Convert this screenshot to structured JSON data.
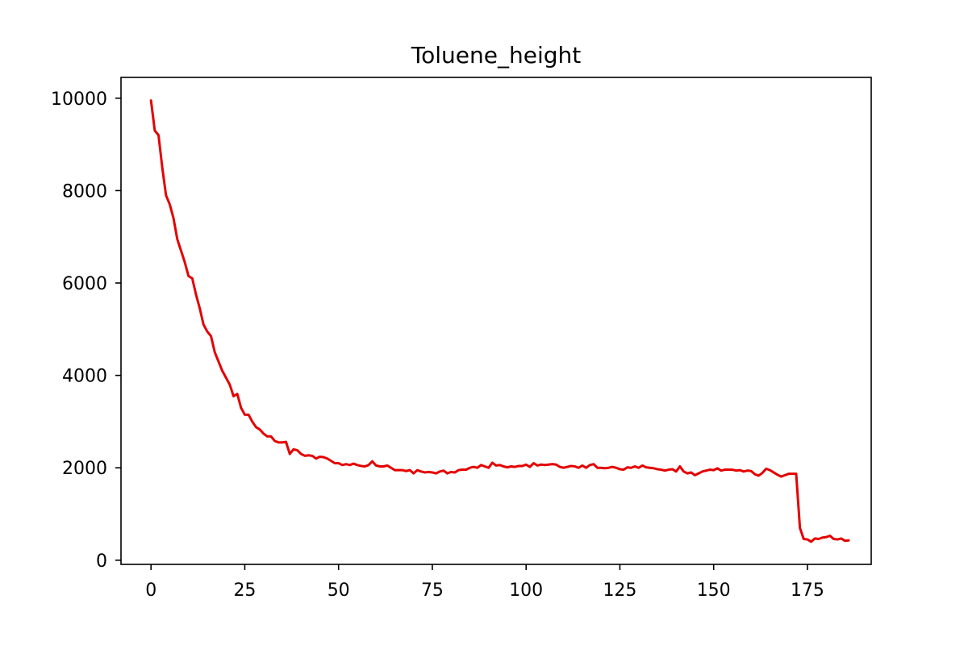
{
  "chart_data": {
    "type": "line",
    "title": "Toluene_height",
    "xlabel": "",
    "ylabel": "",
    "xlim": [
      -8,
      192
    ],
    "ylim": [
      -90,
      10450
    ],
    "grid": false,
    "legend": "none",
    "x_ticks": [
      0,
      25,
      50,
      75,
      100,
      125,
      150,
      175
    ],
    "x_tick_labels": [
      "0",
      "25",
      "50",
      "75",
      "100",
      "125",
      "150",
      "175"
    ],
    "y_ticks": [
      0,
      2000,
      4000,
      6000,
      8000,
      10000
    ],
    "y_tick_labels": [
      "0",
      "2000",
      "4000",
      "6000",
      "8000",
      "10000"
    ],
    "series": [
      {
        "color": "#e50000",
        "x_start": 0,
        "x_step": 1,
        "values": [
          9950,
          9300,
          9200,
          8500,
          7900,
          7700,
          7400,
          6950,
          6700,
          6450,
          6150,
          6100,
          5750,
          5450,
          5100,
          4950,
          4850,
          4500,
          4300,
          4100,
          3950,
          3800,
          3550,
          3600,
          3300,
          3150,
          3150,
          3000,
          2880,
          2830,
          2740,
          2680,
          2680,
          2580,
          2550,
          2550,
          2560,
          2300,
          2400,
          2380,
          2300,
          2260,
          2270,
          2260,
          2200,
          2240,
          2230,
          2200,
          2150,
          2100,
          2100,
          2060,
          2080,
          2060,
          2090,
          2060,
          2040,
          2030,
          2060,
          2140,
          2050,
          2030,
          2030,
          2050,
          2000,
          1950,
          1950,
          1950,
          1930,
          1950,
          1880,
          1950,
          1920,
          1900,
          1910,
          1900,
          1880,
          1920,
          1940,
          1880,
          1910,
          1900,
          1950,
          1960,
          1960,
          2000,
          2020,
          2000,
          2060,
          2030,
          2000,
          2110,
          2050,
          2060,
          2030,
          2010,
          2030,
          2020,
          2040,
          2040,
          2070,
          2020,
          2100,
          2050,
          2070,
          2060,
          2070,
          2080,
          2070,
          2020,
          2000,
          2020,
          2040,
          2030,
          2000,
          2050,
          2000,
          2060,
          2080,
          2000,
          2000,
          1990,
          2000,
          2020,
          2000,
          1970,
          1960,
          2010,
          2000,
          2030,
          2000,
          2050,
          2010,
          2000,
          1990,
          1970,
          1960,
          1940,
          1960,
          1970,
          1920,
          2030,
          1920,
          1880,
          1900,
          1840,
          1880,
          1920,
          1940,
          1960,
          1950,
          1990,
          1940,
          1960,
          1960,
          1960,
          1940,
          1950,
          1920,
          1940,
          1930,
          1860,
          1830,
          1890,
          1980,
          1950,
          1900,
          1850,
          1810,
          1840,
          1870,
          1870,
          1870,
          700,
          460,
          450,
          400,
          470,
          460,
          490,
          500,
          530,
          460,
          450,
          470,
          420,
          430
        ]
      }
    ]
  }
}
